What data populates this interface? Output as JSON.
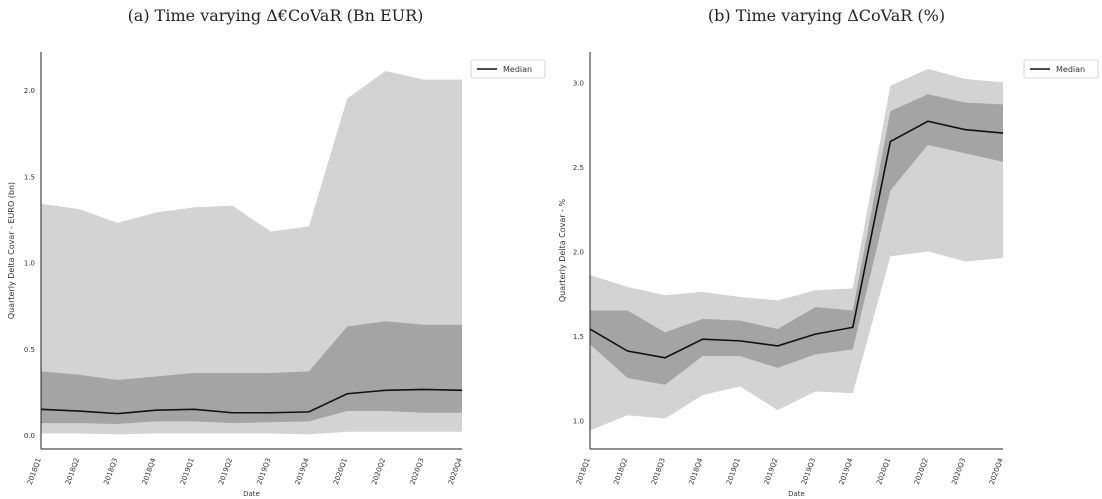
{
  "captions": {
    "left": "(a) Time varying Δ€CoVaR (Bn EUR)",
    "right": "(b) Time varying ΔCoVaR (%)"
  },
  "chart_data": [
    {
      "type": "area",
      "title": "(a) Time varying Δ€CoVaR (Bn EUR)",
      "xlabel": "Date",
      "ylabel": "Quarterly Delta Covar - EURO (bn)",
      "ylim": [
        -0.08,
        2.22
      ],
      "yticks": [
        0.0,
        0.5,
        1.0,
        1.5,
        2.0
      ],
      "ytick_labels": [
        "0.0",
        "0.5",
        "1.0",
        "1.5",
        "2.0"
      ],
      "categories": [
        "2018Q1",
        "2018Q2",
        "2018Q3",
        "2018Q4",
        "2019Q1",
        "2019Q2",
        "2019Q3",
        "2019Q4",
        "2020Q1",
        "2020Q2",
        "2020Q3",
        "2020Q4"
      ],
      "legend": {
        "entries": [
          "Median"
        ],
        "placement": "outside-top-right"
      },
      "grid": false,
      "bands": [
        {
          "role": "outer",
          "color": "#d3d3d3",
          "lower": [
            0.01,
            0.01,
            0.005,
            0.01,
            0.01,
            0.01,
            0.01,
            0.005,
            0.02,
            0.02,
            0.02,
            0.02
          ],
          "upper": [
            1.34,
            1.31,
            1.23,
            1.29,
            1.32,
            1.33,
            1.18,
            1.21,
            1.95,
            2.11,
            2.06,
            2.06
          ]
        },
        {
          "role": "inner",
          "color": "#a4a4a4",
          "lower": [
            0.07,
            0.07,
            0.065,
            0.08,
            0.08,
            0.07,
            0.075,
            0.08,
            0.14,
            0.14,
            0.13,
            0.13
          ],
          "upper": [
            0.37,
            0.35,
            0.32,
            0.34,
            0.36,
            0.36,
            0.36,
            0.37,
            0.63,
            0.66,
            0.64,
            0.64
          ]
        }
      ],
      "series": [
        {
          "name": "Median",
          "color": "#111111",
          "values": [
            0.15,
            0.14,
            0.125,
            0.145,
            0.15,
            0.13,
            0.13,
            0.135,
            0.24,
            0.26,
            0.265,
            0.26
          ]
        }
      ]
    },
    {
      "type": "area",
      "title": "(b) Time varying ΔCoVaR (%)",
      "xlabel": "Date",
      "ylabel": "Quarterly Delta Covar - %",
      "ylim": [
        0.83,
        3.18
      ],
      "yticks": [
        1.0,
        1.5,
        2.0,
        2.5,
        3.0
      ],
      "ytick_labels": [
        "1.0",
        "1.5",
        "2.0",
        "2.5",
        "3.0"
      ],
      "categories": [
        "2018Q1",
        "2018Q2",
        "2018Q3",
        "2018Q4",
        "2019Q1",
        "2019Q2",
        "2019Q3",
        "2019Q4",
        "2020Q1",
        "2020Q2",
        "2020Q3",
        "2020Q4"
      ],
      "legend": {
        "entries": [
          "Median"
        ],
        "placement": "outside-top-right"
      },
      "grid": false,
      "bands": [
        {
          "role": "outer",
          "color": "#d3d3d3",
          "lower": [
            0.94,
            1.03,
            1.01,
            1.15,
            1.2,
            1.06,
            1.17,
            1.16,
            1.97,
            2.0,
            1.94,
            1.96
          ],
          "upper": [
            1.86,
            1.79,
            1.74,
            1.76,
            1.73,
            1.71,
            1.77,
            1.78,
            2.98,
            3.08,
            3.02,
            3.0
          ]
        },
        {
          "role": "inner",
          "color": "#a4a4a4",
          "lower": [
            1.45,
            1.25,
            1.21,
            1.38,
            1.38,
            1.31,
            1.39,
            1.42,
            2.36,
            2.63,
            2.58,
            2.53
          ],
          "upper": [
            1.65,
            1.65,
            1.52,
            1.6,
            1.59,
            1.54,
            1.67,
            1.65,
            2.83,
            2.93,
            2.88,
            2.87
          ]
        }
      ],
      "series": [
        {
          "name": "Median",
          "color": "#111111",
          "values": [
            1.54,
            1.41,
            1.37,
            1.48,
            1.47,
            1.44,
            1.51,
            1.55,
            2.65,
            2.77,
            2.72,
            2.7
          ]
        }
      ]
    }
  ]
}
